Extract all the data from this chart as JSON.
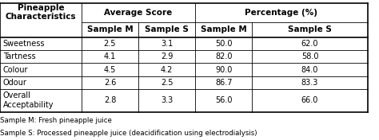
{
  "col_headers_row1": [
    "Pineapple\nCharacteristics",
    "Average Score",
    "Percentage (%)"
  ],
  "col_headers_row2": [
    "",
    "Sample M",
    "Sample S",
    "Sample M",
    "Sample S"
  ],
  "rows": [
    [
      "Sweetness",
      "2.5",
      "3.1",
      "50.0",
      "62.0"
    ],
    [
      "Tartness",
      "4.1",
      "2.9",
      "82.0",
      "58.0"
    ],
    [
      "Colour",
      "4.5",
      "4.2",
      "90.0",
      "84.0"
    ],
    [
      "Odour",
      "2.6",
      "2.5",
      "86.7",
      "83.3"
    ],
    [
      "Overall\nAcceptability",
      "2.8",
      "3.3",
      "56.0",
      "66.0"
    ]
  ],
  "footnotes": [
    "Sample M: Fresh pineapple juice",
    "Sample S: Processed pineapple juice (deacidification using electrodialysis)"
  ],
  "background_color": "#ffffff",
  "text_color": "#000000",
  "font_size": 7.0,
  "header_font_size": 7.5
}
